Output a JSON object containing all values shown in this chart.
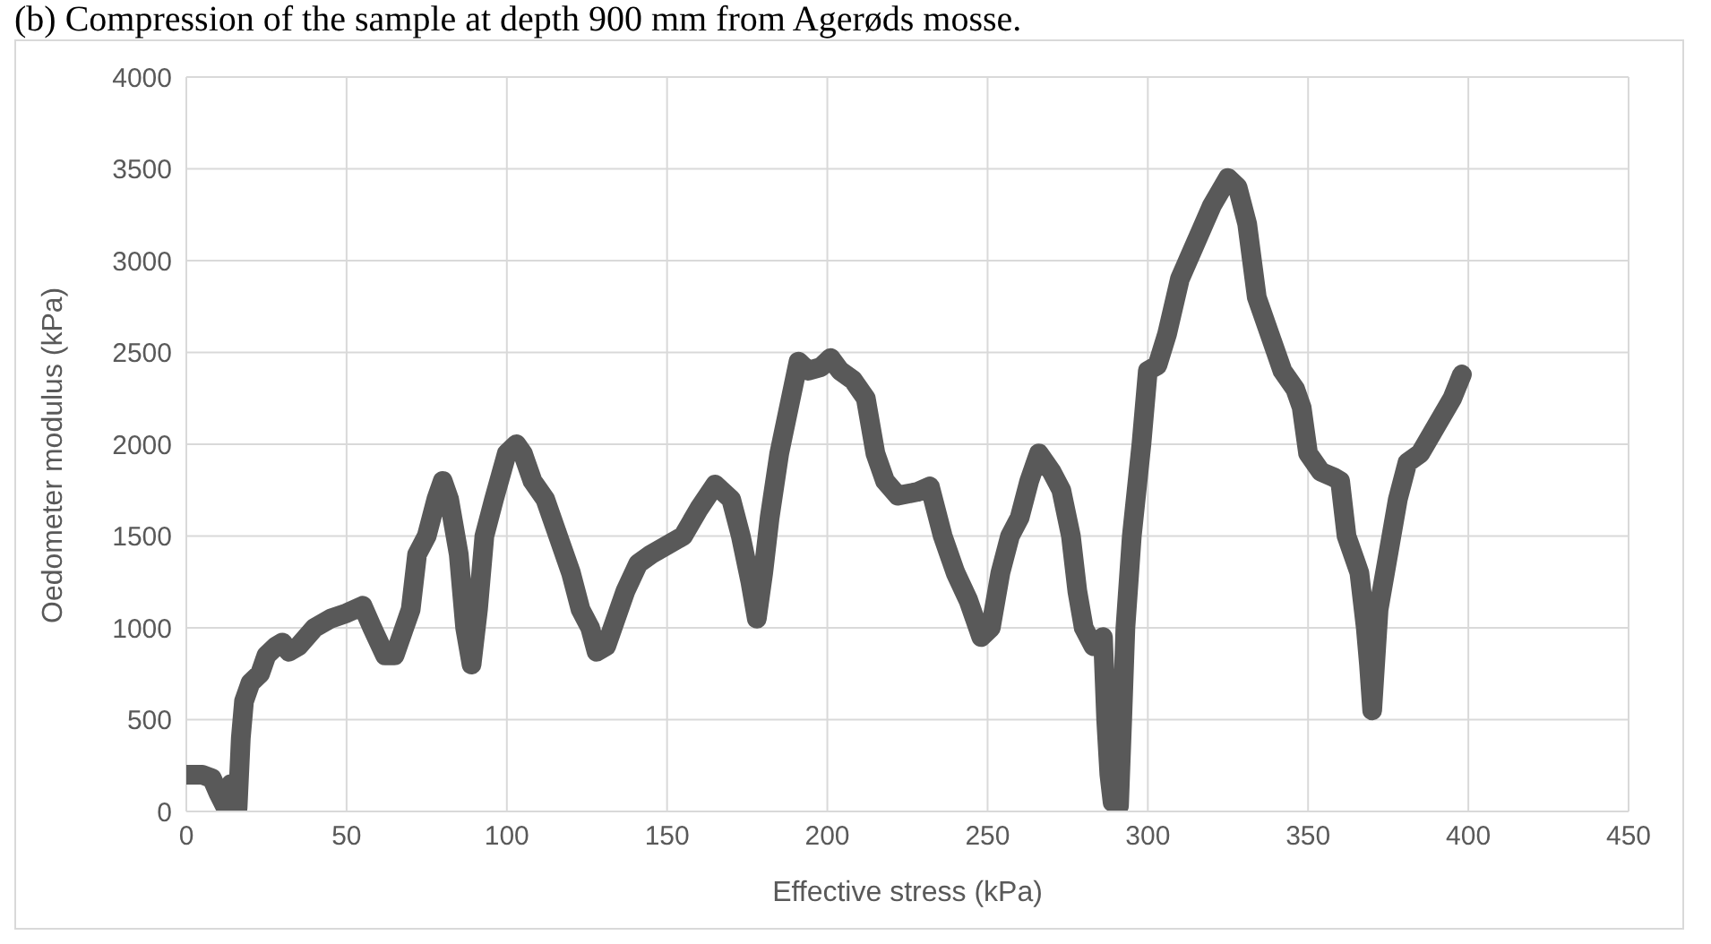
{
  "chart_data": {
    "type": "line",
    "title": "(b) Compression of the sample at depth 900 mm from Agerøds mosse.",
    "xlabel": "Effective stress (kPa)",
    "ylabel": "Oedometer modulus (kPa)",
    "x": [
      0,
      5,
      8,
      10,
      12,
      14,
      15,
      16,
      17,
      18,
      20,
      23,
      25,
      28,
      30,
      32,
      35,
      40,
      45,
      50,
      55,
      58,
      62,
      65,
      68,
      70,
      72,
      75,
      78,
      80,
      82,
      85,
      87,
      89,
      91,
      93,
      96,
      100,
      103,
      105,
      108,
      112,
      116,
      120,
      123,
      126,
      128,
      131,
      134,
      137,
      141,
      145,
      150,
      155,
      160,
      165,
      170,
      173,
      176,
      178,
      180,
      182,
      185,
      188,
      191,
      194,
      198,
      201,
      204,
      208,
      212,
      215,
      218,
      222,
      228,
      232,
      236,
      240,
      244,
      248,
      251,
      254,
      257,
      260,
      263,
      266,
      270,
      273,
      276,
      278,
      280,
      283,
      286,
      287,
      288,
      289,
      291,
      292,
      293,
      295,
      298,
      300,
      303,
      306,
      310,
      315,
      320,
      325,
      328,
      331,
      334,
      338,
      342,
      346,
      348,
      350,
      354,
      358,
      360,
      362,
      366,
      368,
      369,
      370,
      372,
      375,
      378,
      381,
      385,
      390,
      395,
      398
    ],
    "series": [
      {
        "color": "#595959",
        "values": [
          200,
          200,
          180,
          100,
          30,
          150,
          50,
          20,
          400,
          600,
          700,
          750,
          850,
          900,
          920,
          870,
          900,
          1000,
          1050,
          1080,
          1120,
          1000,
          850,
          850,
          1000,
          1100,
          1400,
          1500,
          1700,
          1800,
          1700,
          1400,
          1000,
          800,
          1100,
          1500,
          1700,
          1950,
          2000,
          1950,
          1800,
          1700,
          1500,
          1300,
          1100,
          1000,
          870,
          900,
          1050,
          1200,
          1350,
          1400,
          1450,
          1500,
          1650,
          1780,
          1700,
          1500,
          1250,
          1050,
          1300,
          1600,
          1950,
          2200,
          2450,
          2400,
          2420,
          2470,
          2400,
          2350,
          2250,
          1950,
          1800,
          1720,
          1740,
          1770,
          1500,
          1300,
          1150,
          950,
          1000,
          1300,
          1500,
          1600,
          1800,
          1950,
          1850,
          1750,
          1500,
          1200,
          1000,
          900,
          950,
          500,
          200,
          50,
          30,
          500,
          1000,
          1500,
          2000,
          2400,
          2430,
          2600,
          2900,
          3100,
          3300,
          3450,
          3400,
          3200,
          2800,
          2600,
          2400,
          2300,
          2200,
          1950,
          1850,
          1820,
          1800,
          1500,
          1300,
          1000,
          800,
          550,
          1100,
          1400,
          1700,
          1900,
          1950,
          2100,
          2250,
          2380
        ]
      }
    ],
    "xlim": [
      0,
      450
    ],
    "xticks": [
      0,
      50,
      100,
      150,
      200,
      250,
      300,
      350,
      400,
      450
    ],
    "ylim": [
      0,
      4000
    ],
    "yticks": [
      0,
      500,
      1000,
      1500,
      2000,
      2500,
      3000,
      3500,
      4000
    ],
    "grid": true,
    "legend": false,
    "marker": "none",
    "line_style": "solid"
  }
}
